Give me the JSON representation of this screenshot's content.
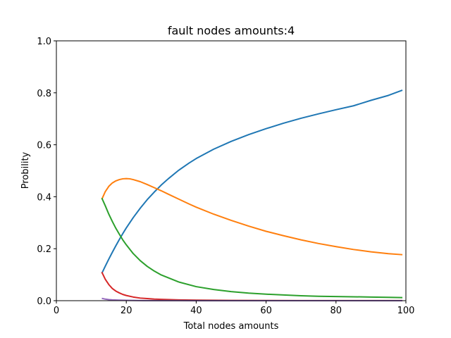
{
  "chart_data": {
    "type": "line",
    "title": "fault nodes amounts:4",
    "xlabel": "Total nodes amounts",
    "ylabel": "Probility",
    "xlim": [
      0,
      100
    ],
    "ylim": [
      0,
      1.0
    ],
    "xticks": [
      0,
      20,
      40,
      60,
      80,
      100
    ],
    "xtick_labels": [
      "0",
      "20",
      "40",
      "60",
      "80",
      "100"
    ],
    "yticks": [
      0,
      0.2,
      0.4,
      0.6,
      0.8,
      1.0
    ],
    "ytick_labels": [
      "0.0",
      "0.2",
      "0.4",
      "0.6",
      "0.8",
      "1.0"
    ],
    "grid": false,
    "legend": "none",
    "series": [
      {
        "color": "#1f77b4",
        "x": [
          13,
          14,
          15,
          16,
          17,
          18,
          19,
          20,
          22,
          24,
          26,
          28,
          30,
          32,
          35,
          38,
          40,
          45,
          50,
          55,
          60,
          65,
          70,
          75,
          80,
          85,
          90,
          95,
          99
        ],
        "y": [
          0.105,
          0.133,
          0.16,
          0.186,
          0.211,
          0.235,
          0.258,
          0.28,
          0.32,
          0.356,
          0.389,
          0.418,
          0.445,
          0.469,
          0.502,
          0.53,
          0.547,
          0.583,
          0.613,
          0.639,
          0.662,
          0.683,
          0.702,
          0.719,
          0.735,
          0.75,
          0.771,
          0.79,
          0.81
        ]
      },
      {
        "color": "#ff7f0e",
        "x": [
          13,
          14,
          15,
          16,
          17,
          18,
          19,
          20,
          21,
          22,
          24,
          26,
          28,
          30,
          32,
          35,
          38,
          40,
          45,
          50,
          55,
          60,
          65,
          70,
          75,
          80,
          85,
          90,
          95,
          99
        ],
        "y": [
          0.39,
          0.42,
          0.44,
          0.453,
          0.461,
          0.466,
          0.469,
          0.47,
          0.469,
          0.466,
          0.458,
          0.447,
          0.435,
          0.423,
          0.41,
          0.391,
          0.372,
          0.36,
          0.333,
          0.309,
          0.287,
          0.267,
          0.25,
          0.234,
          0.22,
          0.208,
          0.197,
          0.188,
          0.181,
          0.177
        ]
      },
      {
        "color": "#2ca02c",
        "x": [
          13,
          14,
          15,
          16,
          17,
          18,
          19,
          20,
          22,
          24,
          26,
          28,
          30,
          35,
          40,
          45,
          50,
          55,
          60,
          65,
          70,
          75,
          80,
          85,
          90,
          95,
          99
        ],
        "y": [
          0.395,
          0.365,
          0.333,
          0.305,
          0.279,
          0.256,
          0.234,
          0.215,
          0.181,
          0.154,
          0.132,
          0.114,
          0.099,
          0.072,
          0.054,
          0.043,
          0.035,
          0.029,
          0.025,
          0.022,
          0.019,
          0.017,
          0.016,
          0.015,
          0.014,
          0.013,
          0.012
        ]
      },
      {
        "color": "#d62728",
        "x": [
          13,
          14,
          15,
          16,
          17,
          18,
          19,
          20,
          22,
          24,
          26,
          28,
          30,
          35,
          40,
          50,
          60,
          70,
          80,
          90,
          99
        ],
        "y": [
          0.11,
          0.082,
          0.062,
          0.047,
          0.037,
          0.03,
          0.024,
          0.02,
          0.014,
          0.01,
          0.008,
          0.006,
          0.005,
          0.003,
          0.002,
          0.001,
          0.0007,
          0.0005,
          0.0003,
          0.0002,
          0.0002
        ]
      },
      {
        "color": "#9467bd",
        "x": [
          13,
          14,
          15,
          16,
          18,
          20,
          25,
          30,
          40,
          50,
          60,
          80,
          99
        ],
        "y": [
          0.009,
          0.006,
          0.004,
          0.003,
          0.002,
          0.0012,
          0.0005,
          0.0003,
          0.0001,
          5e-05,
          2e-05,
          1e-05,
          1e-05
        ]
      }
    ]
  }
}
